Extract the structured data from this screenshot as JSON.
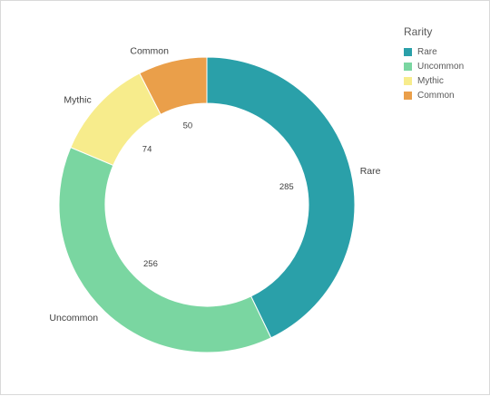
{
  "chart_data": {
    "type": "pie",
    "variant": "donut",
    "legend_title": "Rarity",
    "legend_position": "top-right",
    "categories": [
      "Rare",
      "Uncommon",
      "Mythic",
      "Common"
    ],
    "values": [
      285,
      256,
      74,
      50
    ],
    "colors": [
      "#2aa0a9",
      "#7ad6a1",
      "#f7ec8c",
      "#ea9f4a"
    ]
  }
}
